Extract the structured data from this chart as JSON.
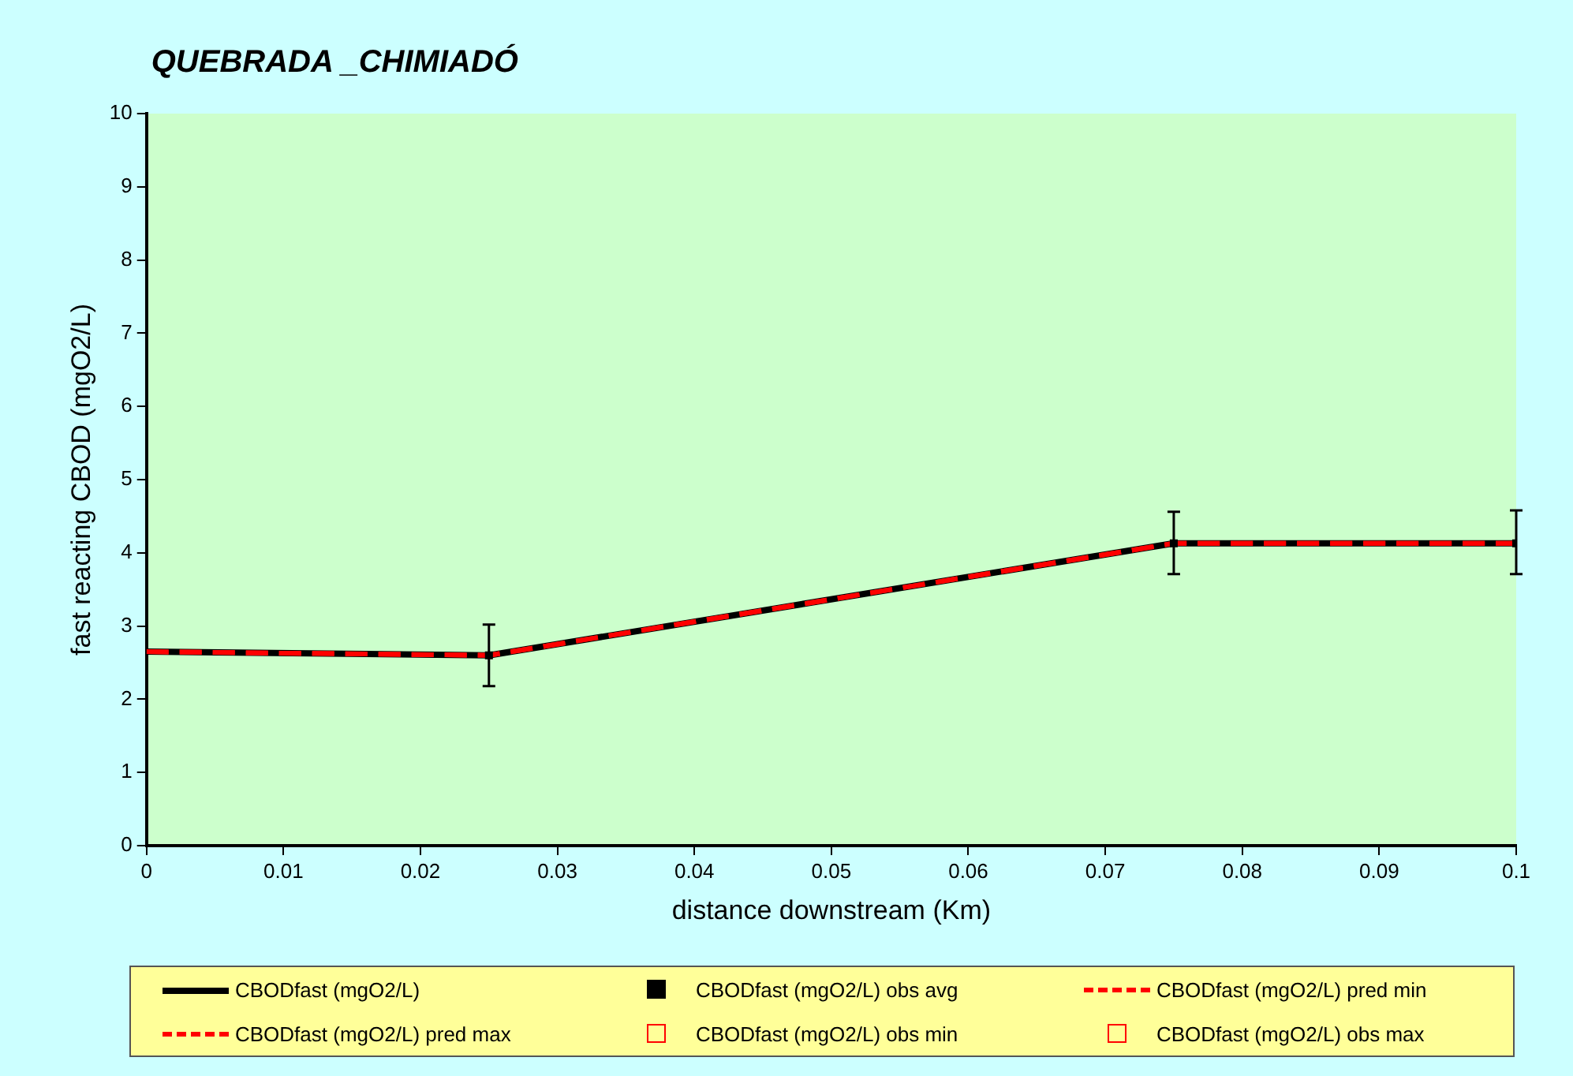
{
  "chart_data": {
    "type": "line",
    "title": "QUEBRADA _CHIMIADÓ",
    "xlabel": "distance downstream (Km)",
    "ylabel": "fast reacting CBOD (mgO2/L)",
    "xlim": [
      0,
      0.1
    ],
    "xticks": [
      0,
      0.01,
      0.02,
      0.03,
      0.04,
      0.05,
      0.06,
      0.07,
      0.08,
      0.09,
      0.1
    ],
    "ylim": [
      0,
      10
    ],
    "yticks": [
      0,
      1,
      2,
      3,
      4,
      5,
      6,
      7,
      8,
      9,
      10
    ],
    "grid": false,
    "legend": "bottom",
    "series": [
      {
        "name": "CBODfast (mgO2/L)",
        "color": "#000000",
        "x": [
          0,
          0.025,
          0.075,
          0.1
        ],
        "values": [
          2.65,
          2.6,
          4.13,
          4.13
        ],
        "line_style": "solid",
        "marker": "none"
      },
      {
        "name": "CBODfast (mgO2/L) obs avg",
        "type": "scatter",
        "color": "#000000",
        "x": [
          0.025,
          0.075,
          0.1
        ],
        "values": [
          2.6,
          4.13,
          4.13
        ],
        "errors": [
          [
            2.18,
            3.02
          ],
          [
            3.71,
            4.56
          ],
          [
            3.71,
            4.58
          ]
        ],
        "marker": "square"
      },
      {
        "name": "CBODfast (mgO2/L) pred min",
        "color": "#ff0000",
        "x": [
          0,
          0.025,
          0.075,
          0.1
        ],
        "values": [
          2.65,
          2.6,
          4.13,
          4.13
        ],
        "line_style": "dashed",
        "marker": "none"
      },
      {
        "name": "CBODfast (mgO2/L) pred max",
        "color": "#ff0000",
        "x": [
          0,
          0.025,
          0.075,
          0.1
        ],
        "values": [
          2.65,
          2.6,
          4.13,
          4.13
        ],
        "line_style": "dashed",
        "marker": "none"
      },
      {
        "name": "CBODfast (mgO2/L) obs min",
        "type": "scatter",
        "color": "#ff0000",
        "marker": "square"
      },
      {
        "name": "CBODfast (mgO2/L) obs max",
        "type": "scatter",
        "color": "#ff0000",
        "marker": "square"
      }
    ]
  }
}
